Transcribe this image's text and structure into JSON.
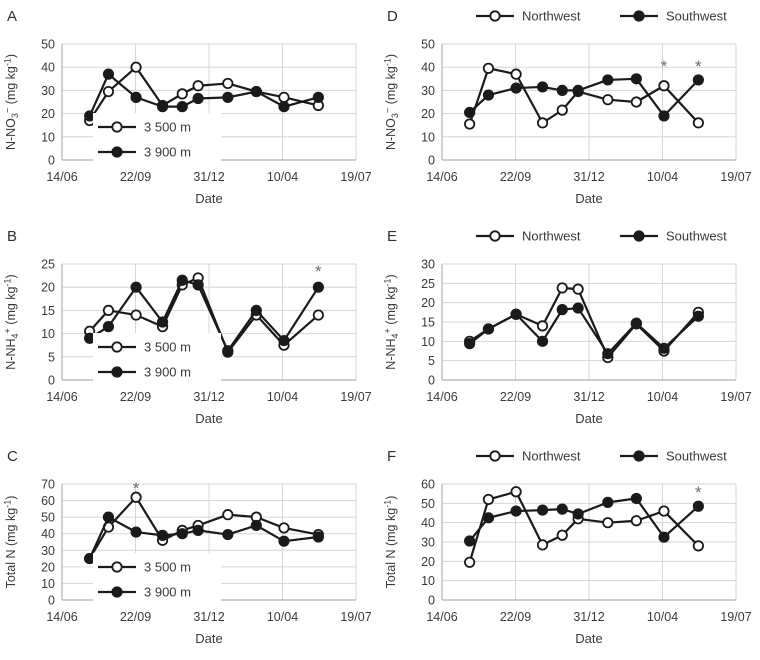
{
  "figure_title": "",
  "theme": {
    "background": "#ffffff",
    "grid_color": "#d6d6d6",
    "axis_color": "#b0b0b0",
    "line_color": "#1a1a1a",
    "text_color": "#3a3a3a",
    "asterisk_color": "#6e6e6e"
  },
  "x_axis": {
    "title": "Date",
    "tick_labels": [
      "14/06",
      "22/09",
      "31/12",
      "10/04",
      "19/07"
    ],
    "point_fractions": [
      0.094,
      0.158,
      0.252,
      0.342,
      0.409,
      0.463,
      0.564,
      0.661,
      0.755,
      0.872
    ]
  },
  "chart_data": [
    {
      "type": "line",
      "letter": "A",
      "ylabel_parts": [
        {
          "t": "N-NO"
        },
        {
          "t": "3",
          "pos": "sub"
        },
        {
          "t": "−",
          "pos": "sup"
        },
        {
          "t": " (mg kg"
        },
        {
          "t": "-1",
          "pos": "sup"
        },
        {
          "t": ")"
        }
      ],
      "ylim": [
        0,
        50
      ],
      "ystep": 10,
      "legend_position": "inside",
      "series": [
        {
          "name": "3 500 m",
          "marker": "open",
          "values": [
            17,
            29.5,
            40,
            23.5,
            28.5,
            32,
            33,
            29.5,
            27,
            23.5
          ]
        },
        {
          "name": "3 900 m",
          "marker": "filled",
          "values": [
            19,
            37,
            27,
            23,
            23,
            26.5,
            27,
            29.5,
            23,
            27
          ]
        }
      ],
      "asterisks": []
    },
    {
      "type": "line",
      "letter": "D",
      "ylabel_parts": [
        {
          "t": "N-NO"
        },
        {
          "t": "3",
          "pos": "sub"
        },
        {
          "t": "−",
          "pos": "sup"
        },
        {
          "t": " (mg kg"
        },
        {
          "t": "-1",
          "pos": "sup"
        },
        {
          "t": ")"
        }
      ],
      "ylim": [
        0,
        50
      ],
      "ystep": 10,
      "legend_position": "top",
      "series": [
        {
          "name": "Northwest",
          "marker": "open",
          "values": [
            15.5,
            39.5,
            37,
            16,
            21.5,
            29.5,
            26,
            25,
            32,
            16
          ]
        },
        {
          "name": "Southwest",
          "marker": "filled",
          "values": [
            20.5,
            28,
            31,
            31.5,
            30,
            30,
            34.5,
            35,
            19,
            34.5
          ]
        }
      ],
      "asterisks": [
        {
          "x_frac": 0.755,
          "value": 40
        },
        {
          "x_frac": 0.872,
          "value": 40
        }
      ]
    },
    {
      "type": "line",
      "letter": "B",
      "ylabel_parts": [
        {
          "t": "N-NH"
        },
        {
          "t": "4",
          "pos": "sub"
        },
        {
          "t": "+",
          "pos": "sup"
        },
        {
          "t": " (mg kg"
        },
        {
          "t": "-1",
          "pos": "sup"
        },
        {
          "t": ")"
        }
      ],
      "ylim": [
        0,
        25
      ],
      "ystep": 5,
      "legend_position": "inside",
      "series": [
        {
          "name": "3 500 m",
          "marker": "open",
          "values": [
            10.5,
            15,
            14,
            11.5,
            20.5,
            22,
            6,
            14,
            7.5,
            14
          ]
        },
        {
          "name": "3 900 m",
          "marker": "filled",
          "values": [
            9,
            11.5,
            20,
            12.5,
            21.5,
            20.5,
            6.3,
            15,
            8.5,
            20
          ]
        }
      ],
      "asterisks": [
        {
          "x_frac": 0.872,
          "value": 23.3
        }
      ]
    },
    {
      "type": "line",
      "letter": "E",
      "ylabel_parts": [
        {
          "t": "N-NH"
        },
        {
          "t": "4",
          "pos": "sub"
        },
        {
          "t": "+",
          "pos": "sup"
        },
        {
          "t": " (mg kg"
        },
        {
          "t": "-1",
          "pos": "sup"
        },
        {
          "t": ")"
        }
      ],
      "ylim": [
        0,
        30
      ],
      "ystep": 5,
      "legend_position": "top",
      "series": [
        {
          "name": "Northwest",
          "marker": "open",
          "values": [
            10,
            13.2,
            17,
            14,
            23.8,
            23.5,
            5.8,
            14.5,
            7.5,
            17.5
          ]
        },
        {
          "name": "Southwest",
          "marker": "filled",
          "values": [
            9.4,
            13.2,
            17,
            10,
            18.2,
            18.6,
            6.8,
            14.7,
            8.2,
            16.5
          ]
        }
      ],
      "asterisks": []
    },
    {
      "type": "line",
      "letter": "C",
      "ylabel_parts": [
        {
          "t": "Total N (mg kg"
        },
        {
          "t": "-1",
          "pos": "sup"
        },
        {
          "t": ")"
        }
      ],
      "ylim": [
        0,
        70
      ],
      "ystep": 10,
      "legend_position": "inside",
      "series": [
        {
          "name": "3 500 m",
          "marker": "open",
          "values": [
            25,
            44,
            62,
            36,
            42,
            45,
            51.5,
            50,
            43.5,
            39.5
          ]
        },
        {
          "name": "3 900 m",
          "marker": "filled",
          "values": [
            25,
            50,
            41,
            39,
            40,
            42,
            39.5,
            45,
            35.5,
            38
          ]
        }
      ],
      "asterisks": [
        {
          "x_frac": 0.252,
          "value": 67
        }
      ]
    },
    {
      "type": "line",
      "letter": "F",
      "ylabel_parts": [
        {
          "t": "Total N (mg kg"
        },
        {
          "t": "-1",
          "pos": "sup"
        },
        {
          "t": ")"
        }
      ],
      "ylim": [
        0,
        60
      ],
      "ystep": 10,
      "legend_position": "top",
      "series": [
        {
          "name": "Northwest",
          "marker": "open",
          "values": [
            19.5,
            52,
            56,
            28.5,
            33.5,
            42,
            40,
            41,
            46,
            28
          ]
        },
        {
          "name": "Southwest",
          "marker": "filled",
          "values": [
            30.5,
            42.5,
            46,
            46.5,
            47,
            44.5,
            50.5,
            52.5,
            32.5,
            48.5
          ]
        }
      ],
      "asterisks": [
        {
          "x_frac": 0.872,
          "value": 55.3
        }
      ]
    }
  ]
}
